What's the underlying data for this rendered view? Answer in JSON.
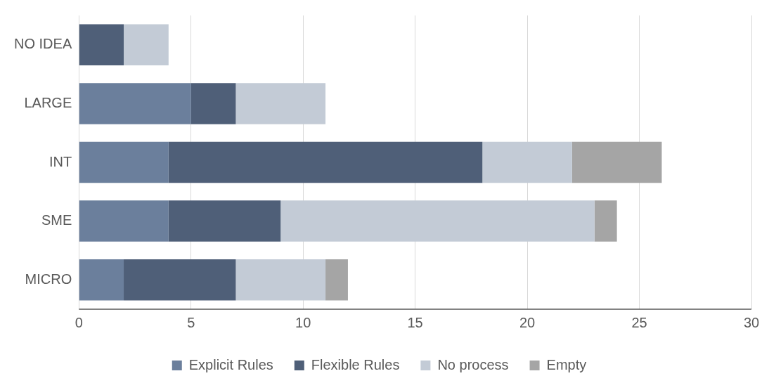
{
  "chart_data": {
    "type": "bar",
    "orientation": "horizontal",
    "stacked": true,
    "categories": [
      "NO IDEA",
      "LARGE",
      "INT",
      "SME",
      "MICRO"
    ],
    "series": [
      {
        "name": "Explicit Rules",
        "color": "#6b7f9c",
        "values": [
          0,
          5,
          4,
          4,
          2
        ]
      },
      {
        "name": "Flexible Rules",
        "color": "#4f5f78",
        "values": [
          2,
          2,
          14,
          5,
          5
        ]
      },
      {
        "name": "No process",
        "color": "#c3cbd6",
        "values": [
          2,
          4,
          4,
          14,
          4
        ]
      },
      {
        "name": "Empty",
        "color": "#a5a5a5",
        "values": [
          0,
          0,
          4,
          1,
          1
        ]
      }
    ],
    "xlim": [
      0,
      30
    ],
    "xticks": [
      0,
      5,
      10,
      15,
      20,
      25,
      30
    ],
    "grid": "x",
    "legend": "bottom"
  }
}
